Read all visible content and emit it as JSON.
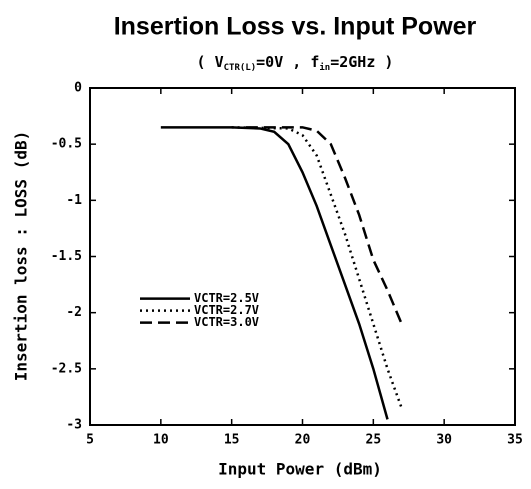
{
  "chart_data": {
    "type": "line",
    "title": "Insertion Loss vs. Input Power",
    "subtitle": [
      {
        "text": "( V"
      },
      {
        "text": "CTR(L)",
        "sub": true
      },
      {
        "text": "=0V ,  f"
      },
      {
        "text": "in",
        "sub": true
      },
      {
        "text": "=2GHz )"
      }
    ],
    "xlabel": "Input Power (dBm)",
    "ylabel": "Insertion loss : LOSS (dB)",
    "xlim": [
      5,
      35
    ],
    "xticks": [
      5,
      10,
      15,
      20,
      25,
      30,
      35
    ],
    "ylim": [
      -3,
      0
    ],
    "yticks": [
      0,
      -0.5,
      -1,
      -1.5,
      -2,
      -2.5,
      -3
    ],
    "legend": "center left",
    "series": [
      {
        "name": "VCTR=2.5V",
        "color": "#000000",
        "dash": "solid",
        "x": [
          10,
          15,
          17,
          18,
          19,
          20,
          21,
          22,
          23,
          24,
          25,
          26
        ],
        "values": [
          -0.35,
          -0.35,
          -0.36,
          -0.39,
          -0.5,
          -0.75,
          -1.05,
          -1.4,
          -1.75,
          -2.1,
          -2.5,
          -2.95
        ]
      },
      {
        "name": "VCTR=2.7V",
        "color": "#000000",
        "dash": "dotted",
        "x": [
          15,
          19,
          20,
          21,
          22,
          23,
          24,
          25,
          26,
          27
        ],
        "values": [
          -0.35,
          -0.36,
          -0.42,
          -0.6,
          -0.95,
          -1.3,
          -1.7,
          -2.1,
          -2.5,
          -2.85
        ]
      },
      {
        "name": "VCTR=3.0V",
        "color": "#000000",
        "dash": "dashed",
        "x": [
          16,
          20,
          21,
          22,
          23,
          24,
          25,
          26,
          27
        ],
        "values": [
          -0.35,
          -0.35,
          -0.38,
          -0.5,
          -0.8,
          -1.13,
          -1.53,
          -1.8,
          -2.1
        ]
      }
    ]
  }
}
